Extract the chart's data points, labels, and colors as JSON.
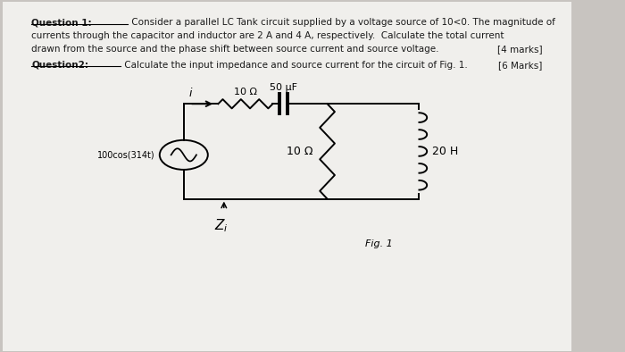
{
  "bg_color": "#c8c4c0",
  "paper_color": "#f0efec",
  "text_color": "#1a1a1a",
  "q1_label": "Question 1:",
  "q1_body1": " Consider a parallel LC Tank circuit supplied by a voltage source of 10<0. The magnitude of",
  "q1_body2": "currents through the capacitor and inductor are 2 A and 4 A, respectively.  Calculate the total current",
  "q1_body3": "drawn from the source and the phase shift between source current and source voltage.",
  "q1_marks": "[4 marks]",
  "q2_label": "Question2:",
  "q2_body": " Calculate the input impedance and source current for the circuit of Fig. 1.",
  "q2_marks": "[6 Marks]",
  "fig_label": "Fig. 1",
  "source_label": "100cos(314t)",
  "resistor1_label": "10 Ω",
  "cap_label": "50 μF",
  "resistor2_label": "10 Ω",
  "inductor_label": "20 H",
  "current_label": "i"
}
